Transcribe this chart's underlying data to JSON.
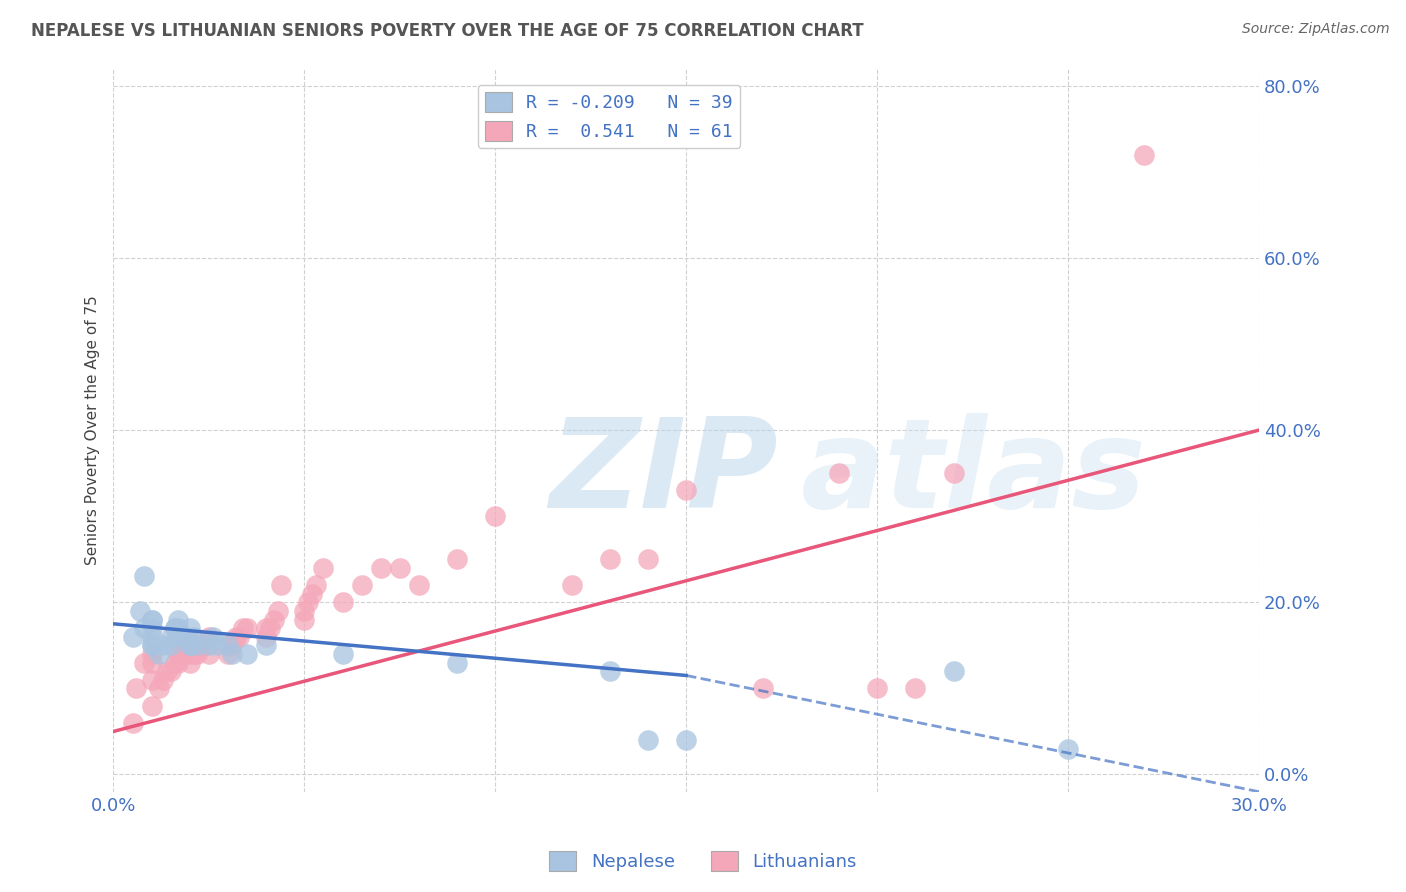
{
  "title": "NEPALESE VS LITHUANIAN SENIORS POVERTY OVER THE AGE OF 75 CORRELATION CHART",
  "source": "Source: ZipAtlas.com",
  "ylabel": "Seniors Poverty Over the Age of 75",
  "xlim": [
    0.0,
    0.3
  ],
  "ylim": [
    -0.02,
    0.82
  ],
  "xticks": [
    0.0,
    0.05,
    0.1,
    0.15,
    0.2,
    0.25,
    0.3
  ],
  "yticks": [
    0.0,
    0.2,
    0.4,
    0.6,
    0.8
  ],
  "ytick_labels": [
    "0.0%",
    "20.0%",
    "40.0%",
    "60.0%",
    "80.0%"
  ],
  "xtick_labels": [
    "0.0%",
    "",
    "",
    "",
    "",
    "",
    "30.0%"
  ],
  "nepalese_R": -0.209,
  "nepalese_N": 39,
  "lithuanian_R": 0.541,
  "lithuanian_N": 61,
  "nepalese_color": "#a8c4e0",
  "lithuanian_color": "#f4a7b9",
  "nepalese_line_color": "#4472c4",
  "lithuanian_line_color": "#e8567a",
  "background_color": "#ffffff",
  "grid_color": "#cccccc",
  "axis_label_color": "#4472c4",
  "title_color": "#555555",
  "nepalese_x": [
    0.005,
    0.007,
    0.008,
    0.008,
    0.01,
    0.01,
    0.01,
    0.01,
    0.01,
    0.01,
    0.012,
    0.013,
    0.015,
    0.015,
    0.016,
    0.016,
    0.017,
    0.017,
    0.018,
    0.019,
    0.02,
    0.02,
    0.02,
    0.021,
    0.022,
    0.025,
    0.026,
    0.027,
    0.03,
    0.031,
    0.035,
    0.04,
    0.06,
    0.09,
    0.13,
    0.14,
    0.15,
    0.22,
    0.25
  ],
  "nepalese_y": [
    0.16,
    0.19,
    0.17,
    0.23,
    0.15,
    0.15,
    0.16,
    0.17,
    0.18,
    0.18,
    0.14,
    0.15,
    0.15,
    0.16,
    0.17,
    0.17,
    0.17,
    0.18,
    0.16,
    0.16,
    0.15,
    0.15,
    0.17,
    0.16,
    0.15,
    0.15,
    0.16,
    0.15,
    0.15,
    0.14,
    0.14,
    0.15,
    0.14,
    0.13,
    0.12,
    0.04,
    0.04,
    0.12,
    0.03
  ],
  "lithuanian_x": [
    0.005,
    0.006,
    0.008,
    0.01,
    0.01,
    0.01,
    0.01,
    0.012,
    0.013,
    0.014,
    0.015,
    0.016,
    0.017,
    0.017,
    0.018,
    0.019,
    0.02,
    0.02,
    0.02,
    0.021,
    0.022,
    0.023,
    0.024,
    0.025,
    0.025,
    0.03,
    0.03,
    0.031,
    0.032,
    0.033,
    0.034,
    0.035,
    0.04,
    0.04,
    0.041,
    0.042,
    0.043,
    0.044,
    0.05,
    0.05,
    0.051,
    0.052,
    0.053,
    0.055,
    0.06,
    0.065,
    0.07,
    0.075,
    0.08,
    0.09,
    0.1,
    0.12,
    0.13,
    0.14,
    0.15,
    0.17,
    0.19,
    0.2,
    0.21,
    0.22,
    0.27
  ],
  "lithuanian_y": [
    0.06,
    0.1,
    0.13,
    0.08,
    0.11,
    0.13,
    0.14,
    0.1,
    0.11,
    0.12,
    0.12,
    0.13,
    0.13,
    0.14,
    0.14,
    0.15,
    0.13,
    0.14,
    0.15,
    0.14,
    0.14,
    0.15,
    0.15,
    0.14,
    0.16,
    0.14,
    0.15,
    0.15,
    0.16,
    0.16,
    0.17,
    0.17,
    0.16,
    0.17,
    0.17,
    0.18,
    0.19,
    0.22,
    0.18,
    0.19,
    0.2,
    0.21,
    0.22,
    0.24,
    0.2,
    0.22,
    0.24,
    0.24,
    0.22,
    0.25,
    0.3,
    0.22,
    0.25,
    0.25,
    0.33,
    0.1,
    0.35,
    0.1,
    0.1,
    0.35,
    0.72
  ],
  "watermark_zip": "ZIP",
  "watermark_atlas": "atlas",
  "nep_line_x0": 0.0,
  "nep_line_x1": 0.15,
  "nep_line_y0": 0.175,
  "nep_line_y1": 0.115,
  "nep_line_x2": 0.3,
  "nep_line_y2": -0.02,
  "lit_line_x0": 0.0,
  "lit_line_x1": 0.3,
  "lit_line_y0": 0.05,
  "lit_line_y1": 0.4
}
